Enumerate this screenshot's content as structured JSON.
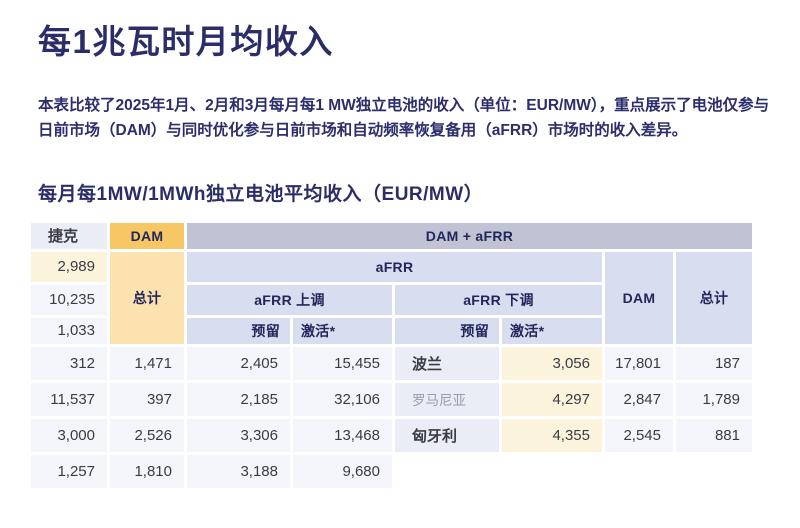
{
  "page": {
    "title": "每1兆瓦时月均收入",
    "description": "本表比较了2025年1月、2月和3月每月每1 MW独立电池的收入（单位：EUR/MW），重点展示了电池仅参与日前市场（DAM）与同时优化参与日前市场和自动频率恢复备用（aFRR）市场时的收入差异。"
  },
  "colors": {
    "title_navy": "#2a2d68",
    "header_amber": "#f7c765",
    "header_amber_light": "#fbe2af",
    "header_gray_lavender": "#bfc3d4",
    "header_lavender": "#d8deef",
    "row_label_bg": "#ebedf6",
    "dam_total_col_bg": "#fcf3dc",
    "data_cell_bg": "#f4f5fa"
  },
  "table": {
    "title": "每月每1MW/1MWh独立电池平均收入（EUR/MW）",
    "header": {
      "dam_only": "DAM",
      "dam_afrr": "DAM + aFRR",
      "dam_only_total": "总计",
      "afrr": "aFRR",
      "afrr_up": "aFRR 上调",
      "afrr_down": "aFRR 下调",
      "up_reserved": "预留",
      "up_activated": "激活*",
      "down_reserved": "预留",
      "down_activated": "激活*",
      "dam": "DAM",
      "total": "总计"
    },
    "rows": [
      {
        "label": "捷克",
        "dam_total": "2,989",
        "up_reserved": "10,235",
        "up_activated": "1,033",
        "down_reserved": "312",
        "down_activated": "1,471",
        "dam": "2,405",
        "total": "15,455"
      },
      {
        "label": "波兰",
        "dam_total": "3,056",
        "up_reserved": "17,801",
        "up_activated": "187",
        "down_reserved": "11,537",
        "down_activated": "397",
        "dam": "2,185",
        "total": "32,106"
      },
      {
        "label": "罗马尼亚",
        "dam_total": "4,297",
        "up_reserved": "2,847",
        "up_activated": "1,789",
        "down_reserved": "3,000",
        "down_activated": "2,526",
        "dam": "3,306",
        "total": "13,468"
      },
      {
        "label": "匈牙利",
        "dam_total": "4,355",
        "up_reserved": "2,545",
        "up_activated": "881",
        "down_reserved": "1,257",
        "down_activated": "1,810",
        "dam": "3,188",
        "total": "9,680"
      }
    ]
  }
}
